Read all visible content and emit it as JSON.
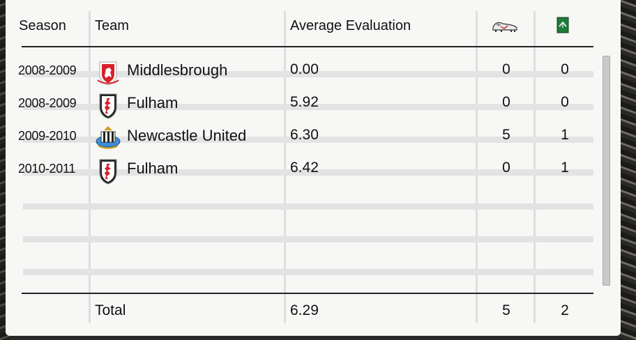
{
  "headers": {
    "season": "Season",
    "team": "Team",
    "average_evaluation": "Average Evaluation",
    "goals_icon": "boot-icon",
    "assists_icon": "pitch-icon"
  },
  "rows": [
    {
      "season": "2008-2009",
      "team": "Middlesbrough",
      "crest": "middlesbrough-crest-icon",
      "avg": "0.00",
      "goals": "0",
      "assists": "0"
    },
    {
      "season": "2008-2009",
      "team": "Fulham",
      "crest": "fulham-crest-icon",
      "avg": "5.92",
      "goals": "0",
      "assists": "0"
    },
    {
      "season": "2009-2010",
      "team": "Newcastle United",
      "crest": "newcastle-crest-icon",
      "avg": "6.30",
      "goals": "5",
      "assists": "1"
    },
    {
      "season": "2010-2011",
      "team": "Fulham",
      "crest": "fulham-crest-icon",
      "avg": "6.42",
      "goals": "0",
      "assists": "1"
    }
  ],
  "total": {
    "label": "Total",
    "avg": "6.29",
    "goals": "5",
    "assists": "2"
  },
  "colors": {
    "panel": "#f7f7f6",
    "stripe": "#e3e3e3",
    "text": "#111111",
    "middlesbrough_red": "#d6202a",
    "newcastle_blue": "#3d8ed6",
    "pitch_green": "#1f7a3a"
  }
}
